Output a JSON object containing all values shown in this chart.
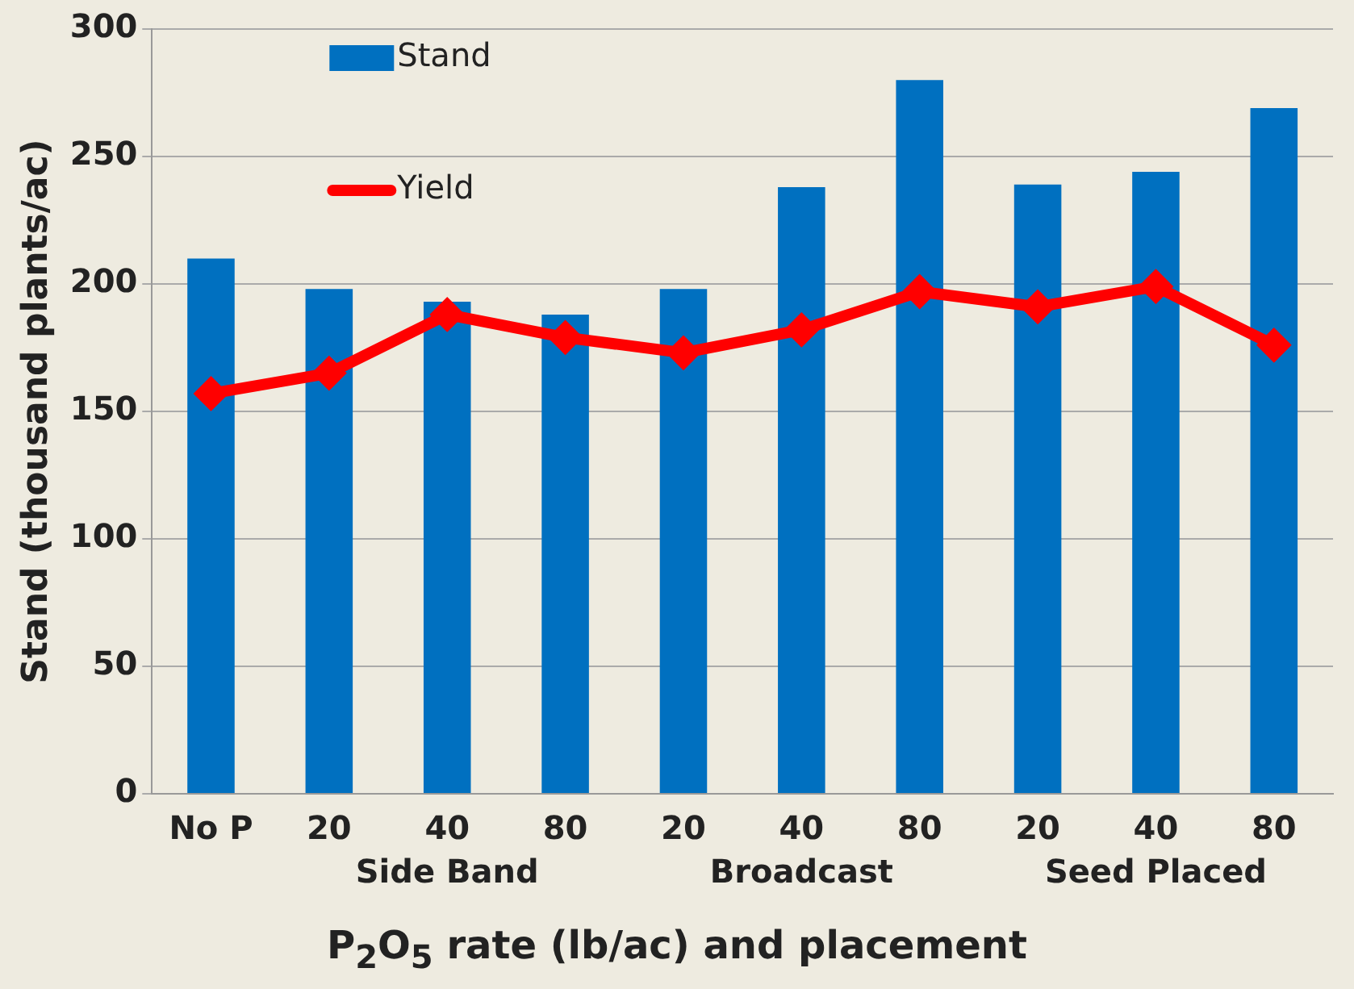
{
  "chart_data": {
    "type": "bar",
    "ylabel": "Stand (thousand plants/ac)",
    "xlabel": "P$_{2}$O$_{5}$ rate (lb/ac) and placement",
    "categories": [
      "No P",
      "20",
      "40",
      "80",
      "20",
      "40",
      "80",
      "20",
      "40",
      "80"
    ],
    "series": [
      {
        "name": "Stand",
        "color": "#0070c0",
        "values": [
          210,
          198,
          193,
          188,
          198,
          238,
          280,
          239,
          244,
          269
        ]
      },
      {
        "name": "Yield",
        "type": "line",
        "color": "#ff0000",
        "marker": "diamond",
        "values": [
          157,
          165,
          188,
          179,
          173,
          182,
          197,
          191,
          199,
          176
        ]
      }
    ],
    "annotations": [
      "Side Band",
      "Broadcast",
      "Seed Placed"
    ],
    "ylim": [
      0,
      300
    ],
    "yticks": [
      0,
      50,
      100,
      150,
      200,
      250,
      300
    ],
    "grid": "y",
    "legend": "top left"
  }
}
